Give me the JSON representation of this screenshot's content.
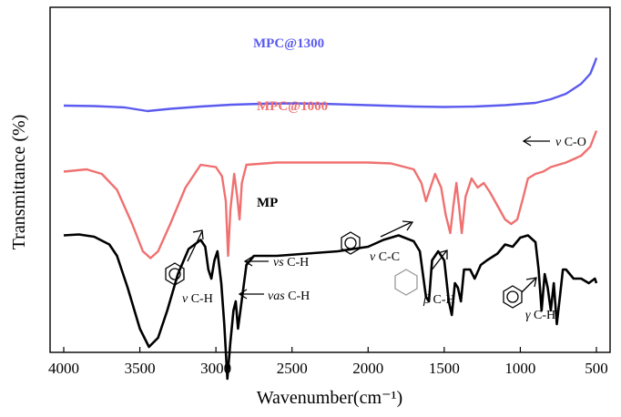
{
  "chart_data": {
    "type": "line",
    "xlabel": "Wavenumber(cm⁻¹)",
    "ylabel": "Transmittance (%)",
    "xlim": [
      4000,
      500
    ],
    "x_reversed": true,
    "y_ticks_shown": false,
    "x_ticks": [
      "4000",
      "3500",
      "3000",
      "2500",
      "2000",
      "1500",
      "1000",
      "500"
    ],
    "colors": {
      "MPC@1300": "#5b5bef",
      "MPC@1000": "#f07070",
      "MP": "#000000"
    },
    "series": [
      {
        "name": "MPC@1300",
        "points": [
          [
            4000,
            12.0
          ],
          [
            3800,
            11.9
          ],
          [
            3600,
            11.6
          ],
          [
            3450,
            10.8
          ],
          [
            3300,
            11.3
          ],
          [
            3100,
            11.8
          ],
          [
            2900,
            12.2
          ],
          [
            2700,
            12.4
          ],
          [
            2500,
            12.5
          ],
          [
            2300,
            12.4
          ],
          [
            2100,
            12.2
          ],
          [
            1900,
            12.0
          ],
          [
            1700,
            11.8
          ],
          [
            1500,
            11.7
          ],
          [
            1300,
            11.8
          ],
          [
            1100,
            12.1
          ],
          [
            900,
            12.6
          ],
          [
            800,
            13.4
          ],
          [
            700,
            14.6
          ],
          [
            600,
            16.8
          ],
          [
            540,
            19.0
          ],
          [
            510,
            21.5
          ],
          [
            500,
            22.5
          ]
        ]
      },
      {
        "name": "MPC@1000",
        "points": [
          [
            4000,
            -2.5
          ],
          [
            3850,
            -2.0
          ],
          [
            3750,
            -3.0
          ],
          [
            3650,
            -6.5
          ],
          [
            3550,
            -14
          ],
          [
            3480,
            -20
          ],
          [
            3430,
            -21.5
          ],
          [
            3380,
            -20
          ],
          [
            3300,
            -14
          ],
          [
            3200,
            -6
          ],
          [
            3100,
            -1.0
          ],
          [
            3000,
            -1.5
          ],
          [
            2960,
            -3.5
          ],
          [
            2935,
            -9
          ],
          [
            2920,
            -21
          ],
          [
            2905,
            -11
          ],
          [
            2880,
            -3
          ],
          [
            2860,
            -8
          ],
          [
            2845,
            -13
          ],
          [
            2830,
            -5
          ],
          [
            2800,
            -1
          ],
          [
            2600,
            -0.5
          ],
          [
            2300,
            -0.5
          ],
          [
            2000,
            -0.5
          ],
          [
            1850,
            -0.7
          ],
          [
            1700,
            -2
          ],
          [
            1650,
            -5
          ],
          [
            1620,
            -9
          ],
          [
            1600,
            -7
          ],
          [
            1560,
            -3
          ],
          [
            1520,
            -6
          ],
          [
            1490,
            -12
          ],
          [
            1460,
            -16
          ],
          [
            1440,
            -10
          ],
          [
            1420,
            -5
          ],
          [
            1400,
            -11
          ],
          [
            1385,
            -16
          ],
          [
            1360,
            -8
          ],
          [
            1320,
            -4
          ],
          [
            1280,
            -6
          ],
          [
            1240,
            -5
          ],
          [
            1200,
            -7
          ],
          [
            1150,
            -10
          ],
          [
            1100,
            -13
          ],
          [
            1060,
            -14
          ],
          [
            1020,
            -13
          ],
          [
            980,
            -8
          ],
          [
            950,
            -4
          ],
          [
            900,
            -3
          ],
          [
            850,
            -2.5
          ],
          [
            800,
            -1.5
          ],
          [
            700,
            -0.5
          ],
          [
            600,
            1
          ],
          [
            540,
            3
          ],
          [
            500,
            6.5
          ]
        ]
      },
      {
        "name": "MP",
        "points": [
          [
            4000,
            -16.5
          ],
          [
            3900,
            -16.3
          ],
          [
            3800,
            -16.8
          ],
          [
            3700,
            -18.5
          ],
          [
            3650,
            -21
          ],
          [
            3580,
            -28
          ],
          [
            3500,
            -37
          ],
          [
            3440,
            -41
          ],
          [
            3380,
            -39
          ],
          [
            3320,
            -33
          ],
          [
            3250,
            -25
          ],
          [
            3180,
            -19.5
          ],
          [
            3100,
            -17.5
          ],
          [
            3070,
            -19
          ],
          [
            3050,
            -24
          ],
          [
            3030,
            -26
          ],
          [
            3010,
            -22
          ],
          [
            2990,
            -20
          ],
          [
            2965,
            -27
          ],
          [
            2945,
            -36
          ],
          [
            2925,
            -48
          ],
          [
            2905,
            -40
          ],
          [
            2885,
            -33
          ],
          [
            2870,
            -31
          ],
          [
            2855,
            -37
          ],
          [
            2835,
            -32
          ],
          [
            2800,
            -23
          ],
          [
            2750,
            -21
          ],
          [
            2600,
            -21
          ],
          [
            2400,
            -20.5
          ],
          [
            2200,
            -20
          ],
          [
            2000,
            -19
          ],
          [
            1900,
            -17.5
          ],
          [
            1800,
            -16.5
          ],
          [
            1700,
            -17.8
          ],
          [
            1660,
            -20
          ],
          [
            1620,
            -30
          ],
          [
            1600,
            -31
          ],
          [
            1580,
            -22
          ],
          [
            1540,
            -20
          ],
          [
            1500,
            -22
          ],
          [
            1470,
            -31
          ],
          [
            1450,
            -34
          ],
          [
            1430,
            -27
          ],
          [
            1410,
            -28
          ],
          [
            1390,
            -31
          ],
          [
            1370,
            -24
          ],
          [
            1330,
            -24
          ],
          [
            1300,
            -26
          ],
          [
            1260,
            -23
          ],
          [
            1220,
            -22
          ],
          [
            1150,
            -20.5
          ],
          [
            1100,
            -18.5
          ],
          [
            1050,
            -19
          ],
          [
            1000,
            -17
          ],
          [
            950,
            -16.5
          ],
          [
            900,
            -18
          ],
          [
            880,
            -24
          ],
          [
            860,
            -33
          ],
          [
            840,
            -25
          ],
          [
            820,
            -28
          ],
          [
            800,
            -33
          ],
          [
            780,
            -27
          ],
          [
            760,
            -36
          ],
          [
            740,
            -30
          ],
          [
            720,
            -24
          ],
          [
            700,
            -24
          ],
          [
            650,
            -26
          ],
          [
            600,
            -26
          ],
          [
            550,
            -27
          ],
          [
            510,
            -26
          ],
          [
            500,
            -27
          ]
        ]
      }
    ],
    "annotations": {
      "label_1300": "MPC@1300",
      "label_1000": "MPC@1000",
      "label_mp": "MP",
      "a_nu": "ν",
      "a_ch": " C-H",
      "a_s": "νs",
      "a_s_text": " C-H",
      "a_as": "νas",
      "a_as_text": " C-H",
      "a_cc_nu": "ν",
      "a_cc": " C-C",
      "a_beta": "β",
      "a_beta_text": " C-H",
      "a_gamma": "γ",
      "a_gamma_text": " C-H",
      "a_co_nu": "ν",
      "a_co": " C-O"
    }
  }
}
